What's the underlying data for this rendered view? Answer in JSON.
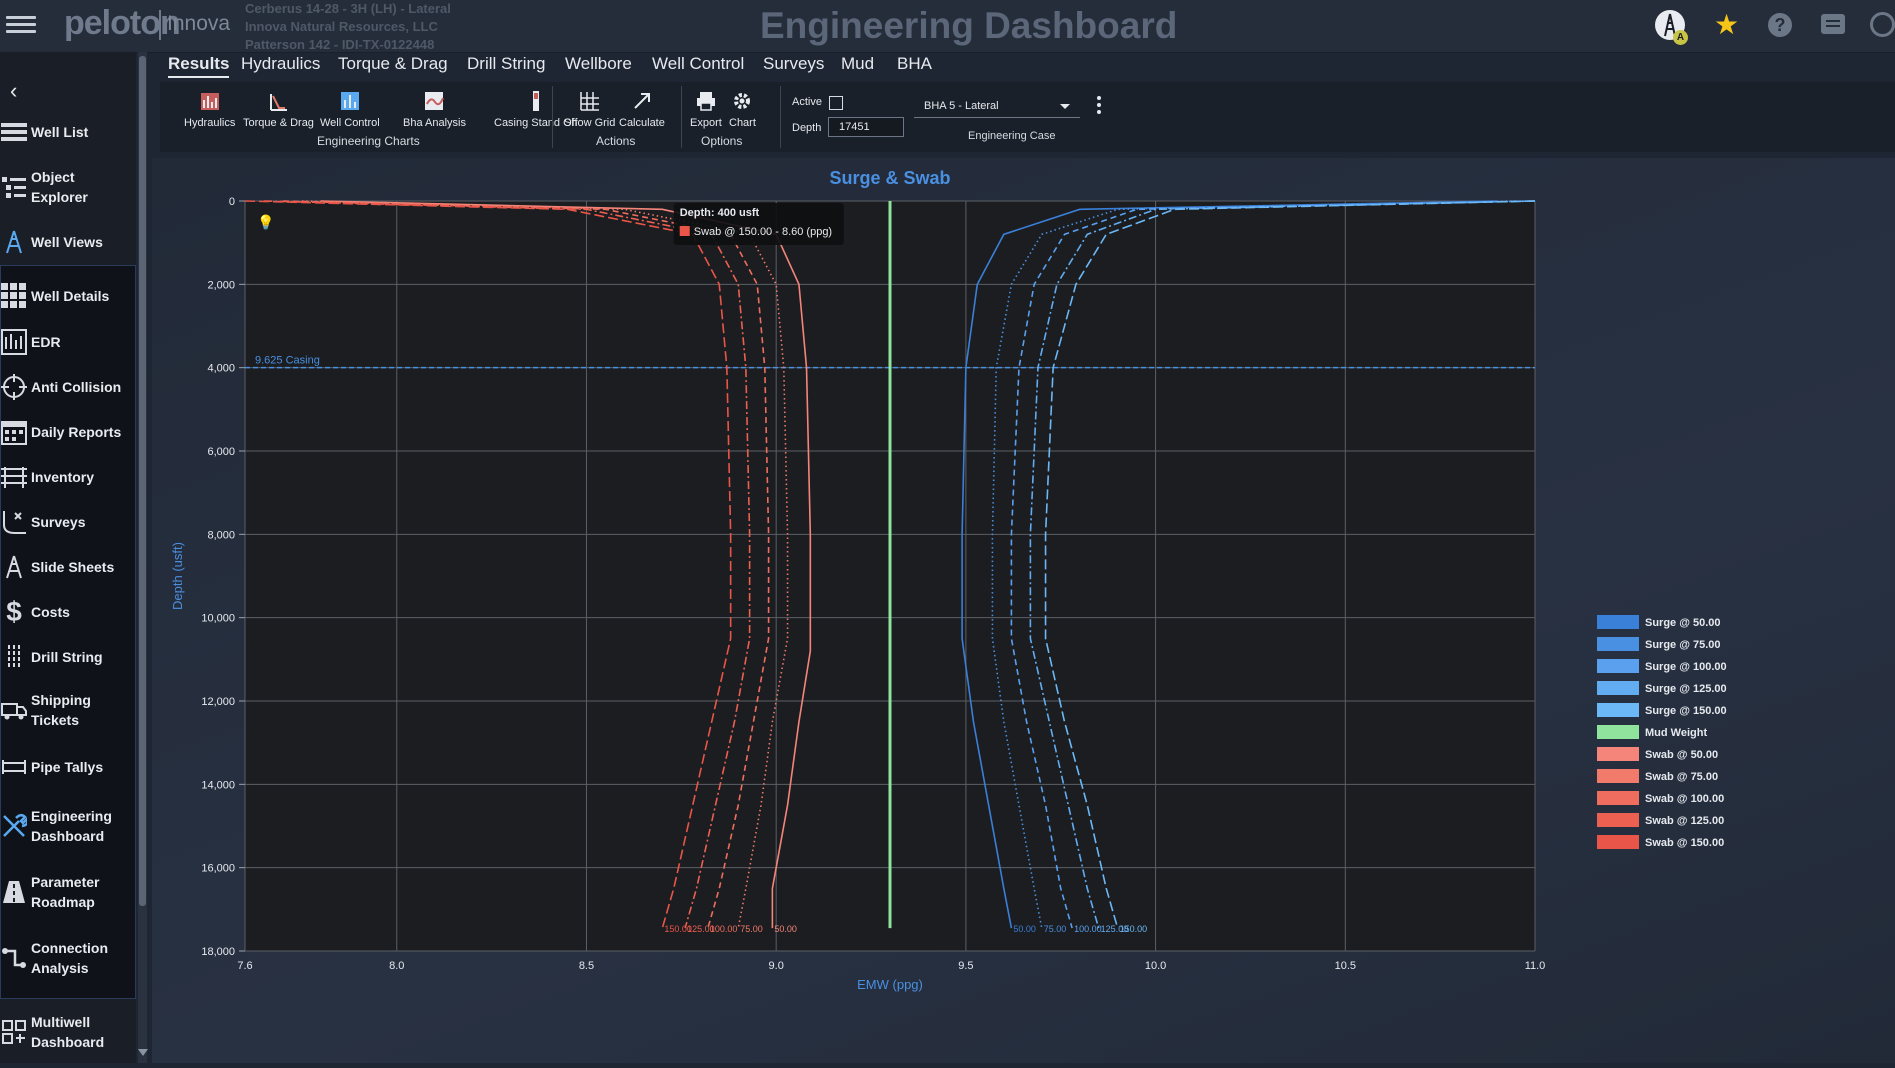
{
  "header": {
    "logo": "peloton",
    "product": "Innova",
    "well_lines": [
      "Cerberus 14-28 - 3H (LH) - Lateral",
      "Innova Natural Resources, LLC",
      "Patterson 142 - IDI-TX-0122448"
    ],
    "title": "Engineering Dashboard",
    "avatar_badge": "A"
  },
  "sidebar": {
    "items": [
      {
        "label": "Well List",
        "icon": "list-icon"
      },
      {
        "label": "Object Explorer",
        "icon": "tree-icon"
      },
      {
        "label": "Well Views",
        "icon": "rig-icon"
      },
      {
        "label": "Well Details",
        "icon": "grid-icon"
      },
      {
        "label": "EDR",
        "icon": "edr-icon"
      },
      {
        "label": "Anti Collision",
        "icon": "crosshair-icon"
      },
      {
        "label": "Daily Reports",
        "icon": "calendar-icon"
      },
      {
        "label": "Inventory",
        "icon": "inventory-icon"
      },
      {
        "label": "Surveys",
        "icon": "survey-icon"
      },
      {
        "label": "Slide Sheets",
        "icon": "rig-icon"
      },
      {
        "label": "Costs",
        "icon": "dollar-icon"
      },
      {
        "label": "Drill String",
        "icon": "drillstring-icon"
      },
      {
        "label": "Shipping Tickets",
        "icon": "truck-icon"
      },
      {
        "label": "Pipe Tallys",
        "icon": "pipe-icon"
      },
      {
        "label": "Engineering Dashboard",
        "icon": "tools-icon"
      },
      {
        "label": "Parameter Roadmap",
        "icon": "road-icon"
      },
      {
        "label": "Connection Analysis",
        "icon": "connection-icon"
      },
      {
        "label": "Multiwell Dashboard",
        "icon": "dashboard-icon"
      }
    ]
  },
  "tabs": [
    "Results",
    "Hydraulics",
    "Torque & Drag",
    "Drill String",
    "Wellbore",
    "Well Control",
    "Surveys",
    "Mud",
    "BHA"
  ],
  "toolbar": {
    "engineering_charts": [
      "Hydraulics",
      "Torque & Drag",
      "Well Control",
      "Bha Analysis",
      "Casing Stand Off"
    ],
    "engineering_charts_label": "Engineering Charts",
    "actions": [
      "Show Grid",
      "Calculate"
    ],
    "actions_label": "Actions",
    "options": [
      "Export",
      "Chart"
    ],
    "options_label": "Options",
    "active_label": "Active",
    "depth_label": "Depth",
    "depth_value": "17451",
    "case_value": "BHA 5 - Lateral",
    "case_label": "Engineering Case"
  },
  "chart_data": {
    "type": "line",
    "title": "Surge & Swab",
    "xlabel": "EMW (ppg)",
    "ylabel": "Depth (usft)",
    "xlim": [
      7.6,
      11.0
    ],
    "ylim": [
      0,
      18000
    ],
    "y_inverted": true,
    "x_ticks": [
      "7.6",
      "8.0",
      "8.5",
      "9.0",
      "9.5",
      "10.0",
      "10.5",
      "11.0"
    ],
    "y_ticks": [
      "0",
      "2,000",
      "4,000",
      "6,000",
      "8,000",
      "10,000",
      "12,000",
      "14,000",
      "16,000",
      "18,000"
    ],
    "grid": true,
    "legend_position": "right",
    "casing": {
      "label": "9.625 Casing",
      "depth": 4000
    },
    "mud_weight": 9.3,
    "colors": {
      "surge": "#4a90e2",
      "swab": "#f27a6a",
      "mud": "#8fe39c"
    },
    "series": [
      {
        "name": "Surge @ 50.00",
        "group": "surge",
        "end_label": "50.00",
        "dash": "solid",
        "points": [
          [
            10.9,
            0
          ],
          [
            9.8,
            200
          ],
          [
            9.6,
            800
          ],
          [
            9.53,
            2000
          ],
          [
            9.5,
            4000
          ],
          [
            9.49,
            8000
          ],
          [
            9.49,
            10500
          ],
          [
            9.52,
            12500
          ],
          [
            9.56,
            14500
          ],
          [
            9.6,
            16500
          ],
          [
            9.62,
            17450
          ]
        ]
      },
      {
        "name": "Surge @ 75.00",
        "group": "surge",
        "end_label": "75.00",
        "dash": "dot",
        "points": [
          [
            10.95,
            0
          ],
          [
            9.9,
            200
          ],
          [
            9.7,
            800
          ],
          [
            9.62,
            2000
          ],
          [
            9.58,
            4000
          ],
          [
            9.57,
            8000
          ],
          [
            9.57,
            10500
          ],
          [
            9.6,
            12500
          ],
          [
            9.64,
            14500
          ],
          [
            9.68,
            16500
          ],
          [
            9.7,
            17450
          ]
        ]
      },
      {
        "name": "Surge @ 100.00",
        "group": "surge",
        "end_label": "100.00",
        "dash": "dash",
        "points": [
          [
            11.0,
            0
          ],
          [
            9.95,
            200
          ],
          [
            9.76,
            800
          ],
          [
            9.68,
            2000
          ],
          [
            9.64,
            4000
          ],
          [
            9.62,
            8000
          ],
          [
            9.62,
            10500
          ],
          [
            9.66,
            12500
          ],
          [
            9.71,
            14500
          ],
          [
            9.75,
            16500
          ],
          [
            9.78,
            17450
          ]
        ]
      },
      {
        "name": "Surge @ 125.00",
        "group": "surge",
        "end_label": "125.00",
        "dash": "dashdot",
        "points": [
          [
            11.0,
            0
          ],
          [
            10.0,
            200
          ],
          [
            9.82,
            800
          ],
          [
            9.74,
            2000
          ],
          [
            9.69,
            4000
          ],
          [
            9.67,
            8000
          ],
          [
            9.67,
            10500
          ],
          [
            9.72,
            12500
          ],
          [
            9.77,
            14500
          ],
          [
            9.82,
            16500
          ],
          [
            9.85,
            17450
          ]
        ]
      },
      {
        "name": "Surge @ 150.00",
        "group": "surge",
        "end_label": "150.00",
        "dash": "longdash",
        "points": [
          [
            11.0,
            0
          ],
          [
            10.05,
            200
          ],
          [
            9.87,
            800
          ],
          [
            9.79,
            2000
          ],
          [
            9.73,
            4000
          ],
          [
            9.71,
            8000
          ],
          [
            9.71,
            10500
          ],
          [
            9.76,
            12500
          ],
          [
            9.82,
            14500
          ],
          [
            9.87,
            16500
          ],
          [
            9.9,
            17450
          ]
        ]
      },
      {
        "name": "Mud Weight",
        "group": "mud",
        "end_label": "",
        "dash": "solid",
        "points": [
          [
            9.3,
            0
          ],
          [
            9.3,
            17450
          ]
        ]
      },
      {
        "name": "Swab @ 50.00",
        "group": "swab",
        "end_label": "50.00",
        "dash": "solid",
        "points": [
          [
            7.8,
            0
          ],
          [
            8.7,
            200
          ],
          [
            9.0,
            800
          ],
          [
            9.06,
            2000
          ],
          [
            9.08,
            4000
          ],
          [
            9.09,
            8000
          ],
          [
            9.09,
            10800
          ],
          [
            9.06,
            12500
          ],
          [
            9.03,
            14500
          ],
          [
            8.99,
            16500
          ],
          [
            8.99,
            17450
          ]
        ]
      },
      {
        "name": "Swab @ 75.00",
        "group": "swab",
        "end_label": "75.00",
        "dash": "dot",
        "points": [
          [
            7.75,
            0
          ],
          [
            8.6,
            200
          ],
          [
            8.93,
            800
          ],
          [
            9.0,
            2000
          ],
          [
            9.02,
            4000
          ],
          [
            9.03,
            8000
          ],
          [
            9.03,
            10500
          ],
          [
            8.99,
            12500
          ],
          [
            8.96,
            14500
          ],
          [
            8.92,
            16500
          ],
          [
            8.9,
            17450
          ]
        ]
      },
      {
        "name": "Swab @ 100.00",
        "group": "swab",
        "end_label": "100.00",
        "dash": "dash",
        "points": [
          [
            7.7,
            0
          ],
          [
            8.55,
            200
          ],
          [
            8.88,
            800
          ],
          [
            8.95,
            2000
          ],
          [
            8.97,
            4000
          ],
          [
            8.98,
            8000
          ],
          [
            8.98,
            10500
          ],
          [
            8.94,
            12500
          ],
          [
            8.9,
            14500
          ],
          [
            8.85,
            16500
          ],
          [
            8.82,
            17450
          ]
        ]
      },
      {
        "name": "Swab @ 125.00",
        "group": "swab",
        "end_label": "125.00",
        "dash": "dashdot",
        "points": [
          [
            7.65,
            0
          ],
          [
            8.5,
            200
          ],
          [
            8.83,
            800
          ],
          [
            8.9,
            2000
          ],
          [
            8.92,
            4000
          ],
          [
            8.93,
            8000
          ],
          [
            8.93,
            10500
          ],
          [
            8.89,
            12500
          ],
          [
            8.84,
            14500
          ],
          [
            8.79,
            16500
          ],
          [
            8.76,
            17450
          ]
        ]
      },
      {
        "name": "Swab @ 150.00",
        "group": "swab",
        "end_label": "150.00",
        "dash": "longdash",
        "points": [
          [
            7.6,
            0
          ],
          [
            8.45,
            200
          ],
          [
            8.78,
            800
          ],
          [
            8.85,
            2000
          ],
          [
            8.87,
            4000
          ],
          [
            8.88,
            8000
          ],
          [
            8.88,
            10500
          ],
          [
            8.83,
            12500
          ],
          [
            8.78,
            14500
          ],
          [
            8.73,
            16500
          ],
          [
            8.7,
            17450
          ]
        ]
      }
    ],
    "tooltip": {
      "title": "Depth: 400 usft",
      "text": "Swab @ 150.00 - 8.60 (ppg)"
    }
  }
}
